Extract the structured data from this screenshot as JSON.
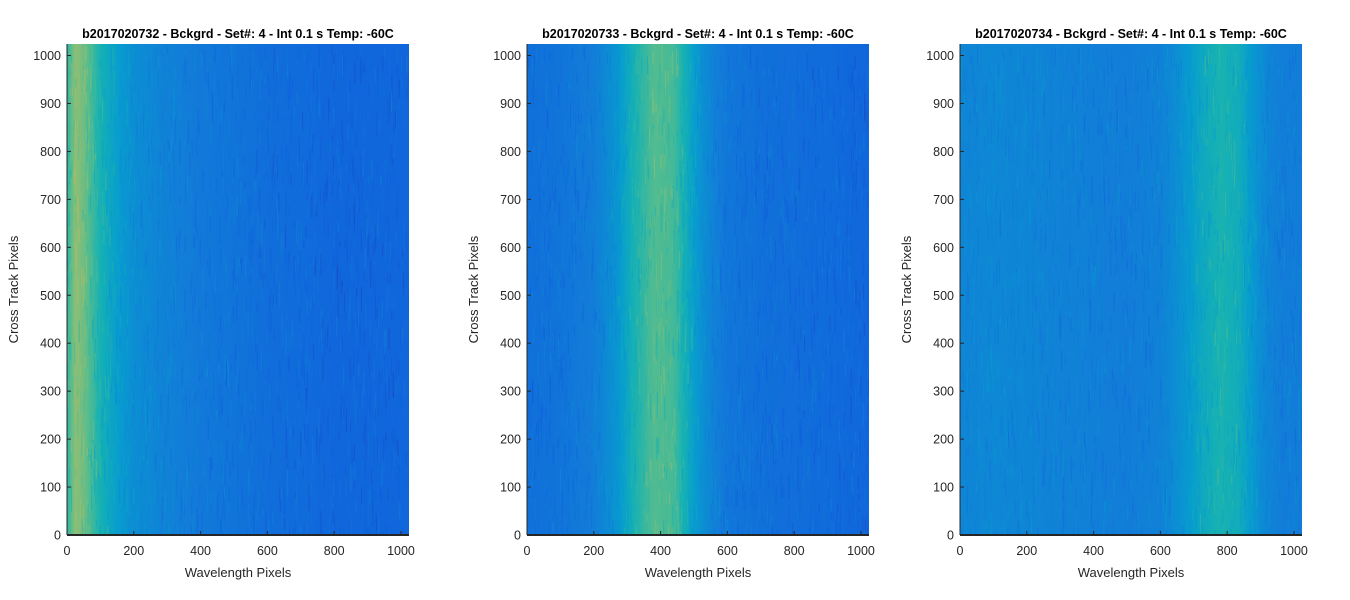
{
  "chart_data": [
    {
      "type": "heatmap",
      "title": "b2017020732 - Bckgrd - Set#: 4 - Int 0.1 s Temp: -60C",
      "xlabel": "Wavelength Pixels",
      "ylabel": "Cross Track Pixels",
      "xlim": [
        0,
        1024
      ],
      "ylim": [
        0,
        1024
      ],
      "xticks": [
        0,
        200,
        400,
        600,
        800,
        1000
      ],
      "yticks": [
        0,
        100,
        200,
        300,
        400,
        500,
        600,
        700,
        800,
        900,
        1000
      ],
      "colormap": "parula",
      "column_intensity_profile": {
        "x": [
          0,
          25,
          50,
          100,
          150,
          200,
          300,
          400,
          500,
          600,
          700,
          800,
          900,
          1024
        ],
        "level": [
          0.58,
          0.72,
          0.68,
          0.55,
          0.46,
          0.38,
          0.32,
          0.28,
          0.26,
          0.23,
          0.22,
          0.2,
          0.2,
          0.2
        ]
      }
    },
    {
      "type": "heatmap",
      "title": "b2017020733 - Bckgrd - Set#: 4 - Int 0.1 s Temp: -60C",
      "xlabel": "Wavelength Pixels",
      "ylabel": "Cross Track Pixels",
      "xlim": [
        0,
        1024
      ],
      "ylim": [
        0,
        1024
      ],
      "xticks": [
        0,
        200,
        400,
        600,
        800,
        1000
      ],
      "yticks": [
        0,
        100,
        200,
        300,
        400,
        500,
        600,
        700,
        800,
        900,
        1000
      ],
      "colormap": "parula",
      "column_intensity_profile": {
        "x": [
          0,
          100,
          200,
          260,
          320,
          380,
          440,
          480,
          520,
          560,
          600,
          700,
          800,
          900,
          1024
        ],
        "level": [
          0.24,
          0.26,
          0.3,
          0.4,
          0.55,
          0.64,
          0.62,
          0.52,
          0.4,
          0.32,
          0.27,
          0.24,
          0.23,
          0.22,
          0.2
        ]
      }
    },
    {
      "type": "heatmap",
      "title": "b2017020734 - Bckgrd - Set#: 4 - Int 0.1 s Temp: -60C",
      "xlabel": "Wavelength Pixels",
      "ylabel": "Cross Track Pixels",
      "xlim": [
        0,
        1024
      ],
      "ylim": [
        0,
        1024
      ],
      "xticks": [
        0,
        200,
        400,
        600,
        800,
        1000
      ],
      "yticks": [
        0,
        100,
        200,
        300,
        400,
        500,
        600,
        700,
        800,
        900,
        1000
      ],
      "colormap": "parula",
      "column_intensity_profile": {
        "x": [
          0,
          100,
          200,
          300,
          400,
          500,
          600,
          660,
          720,
          780,
          840,
          880,
          920,
          960,
          1024
        ],
        "level": [
          0.34,
          0.35,
          0.34,
          0.32,
          0.31,
          0.3,
          0.32,
          0.4,
          0.5,
          0.56,
          0.52,
          0.42,
          0.34,
          0.3,
          0.3
        ]
      }
    }
  ]
}
